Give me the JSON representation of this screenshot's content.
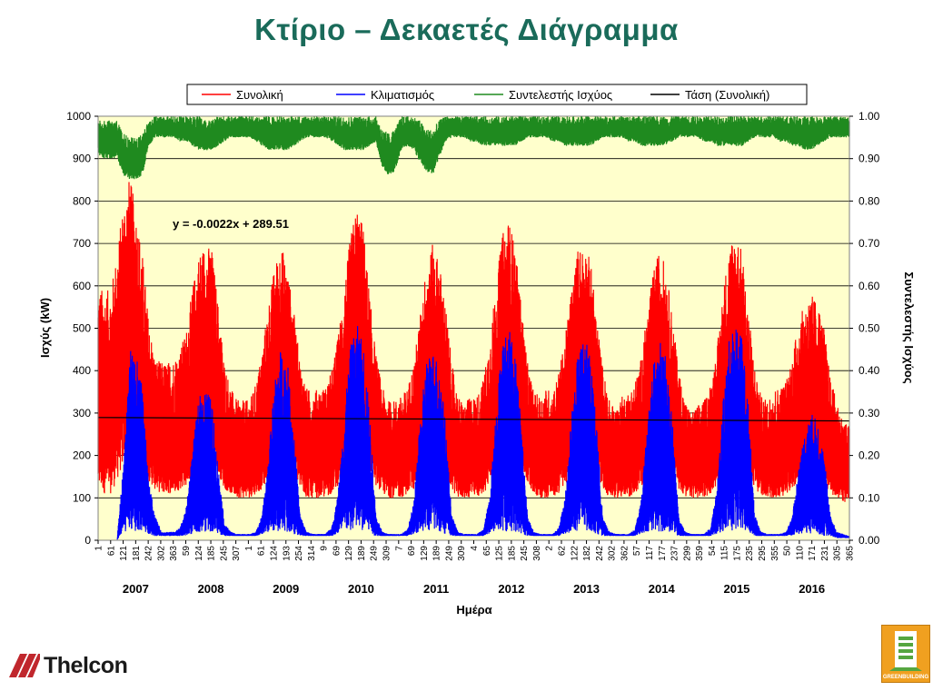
{
  "title": "Κτίριο – Δεκαετές Διάγραμμα",
  "chart_data": {
    "type": "line",
    "xlabel": "Ημέρα",
    "ylabel": "Ισχύς (kW)",
    "y2label": "Συντελεστής Ισχύος",
    "ylim": [
      0,
      1000
    ],
    "y2lim": [
      0.0,
      1.0
    ],
    "yticks": [
      "0",
      "100",
      "200",
      "300",
      "400",
      "500",
      "600",
      "700",
      "800",
      "900",
      "1000"
    ],
    "y2ticks": [
      "0.00",
      "0.10",
      "0.20",
      "0.30",
      "0.40",
      "0.50",
      "0.60",
      "0.70",
      "0.80",
      "0.90",
      "1.00"
    ],
    "xtick_labels": [
      "1",
      "61",
      "121",
      "181",
      "242",
      "302",
      "363",
      "59",
      "124",
      "185",
      "245",
      "307",
      "1",
      "61",
      "124",
      "193",
      "254",
      "314",
      "9",
      "69",
      "129",
      "189",
      "249",
      "309",
      "7",
      "69",
      "129",
      "189",
      "249",
      "309",
      "4",
      "65",
      "125",
      "185",
      "245",
      "308",
      "2",
      "62",
      "122",
      "182",
      "242",
      "302",
      "362",
      "57",
      "117",
      "177",
      "237",
      "299",
      "359",
      "54",
      "115",
      "175",
      "235",
      "295",
      "355",
      "50",
      "110",
      "171",
      "231",
      "305",
      "365"
    ],
    "years": [
      "2007",
      "2008",
      "2009",
      "2010",
      "2011",
      "2012",
      "2013",
      "2014",
      "2015",
      "2016"
    ],
    "grid": true,
    "legend_position": "top",
    "plot_background": "#ffffcc",
    "series": [
      {
        "name": "Συνολική",
        "color": "#ff0000",
        "axis": "left",
        "monthly_max": [
          600,
          590,
          590,
          680,
          800,
          860,
          780,
          680,
          520,
          430,
          420,
          420,
          430,
          450,
          500,
          600,
          680,
          700,
          690,
          560,
          420,
          360,
          330,
          330,
          330,
          370,
          450,
          560,
          650,
          700,
          640,
          540,
          420,
          360,
          350,
          360,
          360,
          400,
          480,
          600,
          720,
          790,
          740,
          580,
          440,
          360,
          330,
          330,
          340,
          360,
          420,
          530,
          650,
          700,
          660,
          560,
          420,
          340,
          320,
          340,
          340,
          380,
          470,
          600,
          720,
          760,
          700,
          560,
          420,
          350,
          340,
          360,
          350,
          400,
          480,
          600,
          690,
          700,
          660,
          520,
          400,
          330,
          310,
          340,
          350,
          370,
          430,
          540,
          640,
          690,
          640,
          520,
          400,
          330,
          300,
          320,
          330,
          370,
          450,
          590,
          700,
          730,
          680,
          540,
          410,
          340,
          330,
          360,
          360,
          380,
          440,
          520,
          560,
          580,
          560,
          500,
          380,
          330,
          280,
          270
        ],
        "monthly_min": [
          120,
          110,
          110,
          140,
          180,
          200,
          200,
          180,
          140,
          120,
          110,
          110,
          110,
          120,
          130,
          150,
          180,
          200,
          190,
          160,
          120,
          110,
          100,
          100,
          100,
          110,
          120,
          150,
          180,
          200,
          190,
          160,
          120,
          100,
          100,
          100,
          100,
          110,
          130,
          160,
          200,
          210,
          200,
          170,
          130,
          110,
          100,
          100,
          100,
          110,
          120,
          150,
          180,
          200,
          190,
          160,
          120,
          100,
          100,
          100,
          100,
          110,
          130,
          160,
          200,
          210,
          200,
          170,
          130,
          110,
          100,
          100,
          100,
          110,
          130,
          160,
          190,
          200,
          190,
          160,
          120,
          100,
          100,
          100,
          100,
          110,
          120,
          150,
          180,
          200,
          190,
          160,
          120,
          100,
          100,
          100,
          100,
          110,
          130,
          160,
          190,
          200,
          190,
          160,
          120,
          100,
          100,
          100,
          100,
          110,
          120,
          140,
          150,
          160,
          150,
          130,
          110,
          100,
          90,
          90
        ]
      },
      {
        "name": "Κλιματισμός",
        "color": "#0000ff",
        "axis": "left",
        "monthly_max": [
          0,
          0,
          0,
          0,
          180,
          450,
          440,
          360,
          140,
          60,
          20,
          20,
          20,
          30,
          80,
          220,
          340,
          360,
          330,
          180,
          40,
          20,
          15,
          15,
          15,
          20,
          60,
          200,
          380,
          460,
          420,
          260,
          60,
          20,
          15,
          15,
          15,
          30,
          110,
          300,
          460,
          510,
          470,
          300,
          60,
          20,
          15,
          15,
          15,
          25,
          90,
          280,
          430,
          450,
          420,
          280,
          60,
          20,
          15,
          15,
          15,
          25,
          100,
          310,
          470,
          500,
          460,
          290,
          60,
          20,
          15,
          15,
          15,
          30,
          110,
          300,
          440,
          480,
          440,
          260,
          50,
          20,
          15,
          15,
          15,
          25,
          90,
          280,
          420,
          470,
          430,
          270,
          50,
          20,
          15,
          15,
          15,
          30,
          120,
          330,
          480,
          520,
          480,
          320,
          60,
          20,
          15,
          15,
          15,
          20,
          60,
          180,
          260,
          300,
          280,
          200,
          60,
          20,
          15,
          10
        ],
        "monthly_min": [
          0,
          0,
          0,
          0,
          20,
          20,
          20,
          20,
          15,
          10,
          10,
          10,
          10,
          10,
          10,
          15,
          20,
          20,
          20,
          15,
          10,
          10,
          10,
          10,
          10,
          10,
          15,
          20,
          20,
          20,
          20,
          15,
          10,
          10,
          10,
          10,
          10,
          10,
          15,
          20,
          20,
          20,
          20,
          15,
          10,
          10,
          10,
          10,
          10,
          10,
          15,
          20,
          20,
          20,
          20,
          15,
          10,
          10,
          10,
          10,
          10,
          10,
          15,
          20,
          20,
          20,
          20,
          15,
          10,
          10,
          10,
          10,
          10,
          10,
          15,
          20,
          20,
          20,
          20,
          15,
          10,
          10,
          10,
          10,
          10,
          10,
          15,
          20,
          20,
          20,
          20,
          15,
          10,
          10,
          10,
          10,
          10,
          10,
          15,
          20,
          20,
          20,
          20,
          15,
          10,
          10,
          10,
          10,
          10,
          10,
          10,
          15,
          15,
          15,
          15,
          10,
          10,
          5,
          5,
          5
        ]
      },
      {
        "name": "Συντελεστής Ισχύος",
        "color": "#1f8a1f",
        "axis": "right",
        "monthly_max": [
          0.99,
          0.99,
          0.99,
          0.99,
          0.96,
          0.95,
          0.95,
          0.96,
          0.99,
          1.0,
          1.0,
          1.0,
          1.0,
          1.0,
          1.0,
          1.0,
          1.0,
          0.99,
          0.99,
          1.0,
          1.0,
          1.0,
          1.0,
          1.0,
          1.0,
          1.0,
          1.0,
          1.0,
          1.0,
          1.0,
          1.0,
          1.0,
          1.0,
          1.0,
          1.0,
          1.0,
          1.0,
          1.0,
          1.0,
          1.0,
          1.0,
          1.0,
          1.0,
          1.0,
          1.0,
          0.97,
          0.96,
          0.97,
          1.0,
          1.0,
          1.0,
          0.99,
          0.97,
          0.97,
          0.99,
          1.0,
          1.0,
          1.0,
          1.0,
          1.0,
          1.0,
          1.0,
          1.0,
          1.0,
          1.0,
          1.0,
          1.0,
          1.0,
          1.0,
          1.0,
          1.0,
          1.0,
          1.0,
          1.0,
          1.0,
          1.0,
          1.0,
          1.0,
          1.0,
          1.0,
          1.0,
          1.0,
          1.0,
          1.0,
          1.0,
          1.0,
          1.0,
          1.0,
          1.0,
          1.0,
          1.0,
          1.0,
          1.0,
          1.0,
          1.0,
          1.0,
          1.0,
          1.0,
          1.0,
          1.0,
          1.0,
          1.0,
          1.0,
          1.0,
          1.0,
          1.0,
          1.0,
          1.0,
          1.0,
          1.0,
          1.0,
          1.0,
          1.0,
          1.0,
          1.0,
          1.0,
          1.0,
          1.0,
          1.0,
          1.0
        ],
        "monthly_min": [
          0.91,
          0.9,
          0.9,
          0.9,
          0.86,
          0.85,
          0.85,
          0.86,
          0.93,
          0.95,
          0.95,
          0.95,
          0.95,
          0.94,
          0.94,
          0.93,
          0.92,
          0.92,
          0.92,
          0.93,
          0.94,
          0.95,
          0.95,
          0.95,
          0.95,
          0.94,
          0.93,
          0.92,
          0.92,
          0.92,
          0.92,
          0.93,
          0.94,
          0.95,
          0.95,
          0.95,
          0.95,
          0.94,
          0.93,
          0.92,
          0.92,
          0.92,
          0.92,
          0.93,
          0.94,
          0.88,
          0.86,
          0.87,
          0.92,
          0.93,
          0.92,
          0.89,
          0.87,
          0.86,
          0.9,
          0.94,
          0.95,
          0.95,
          0.95,
          0.94,
          0.94,
          0.93,
          0.93,
          0.93,
          0.93,
          0.93,
          0.93,
          0.94,
          0.95,
          0.95,
          0.95,
          0.95,
          0.94,
          0.94,
          0.93,
          0.93,
          0.93,
          0.93,
          0.93,
          0.94,
          0.95,
          0.95,
          0.95,
          0.95,
          0.94,
          0.94,
          0.93,
          0.93,
          0.93,
          0.93,
          0.93,
          0.94,
          0.95,
          0.95,
          0.95,
          0.95,
          0.94,
          0.94,
          0.93,
          0.93,
          0.93,
          0.93,
          0.93,
          0.94,
          0.95,
          0.95,
          0.95,
          0.95,
          0.94,
          0.94,
          0.93,
          0.93,
          0.92,
          0.92,
          0.93,
          0.94,
          0.95,
          0.95,
          0.95,
          0.95
        ]
      },
      {
        "name": "Τάση (Συνολική)",
        "color": "#000000",
        "axis": "left",
        "trend_slope": -0.0022,
        "trend_intercept": 289.51
      }
    ],
    "annotation": "y = -0.0022x + 289.51"
  },
  "logos": {
    "left_brand": "Thelcon",
    "right_brand": "GREENBUILDING"
  }
}
